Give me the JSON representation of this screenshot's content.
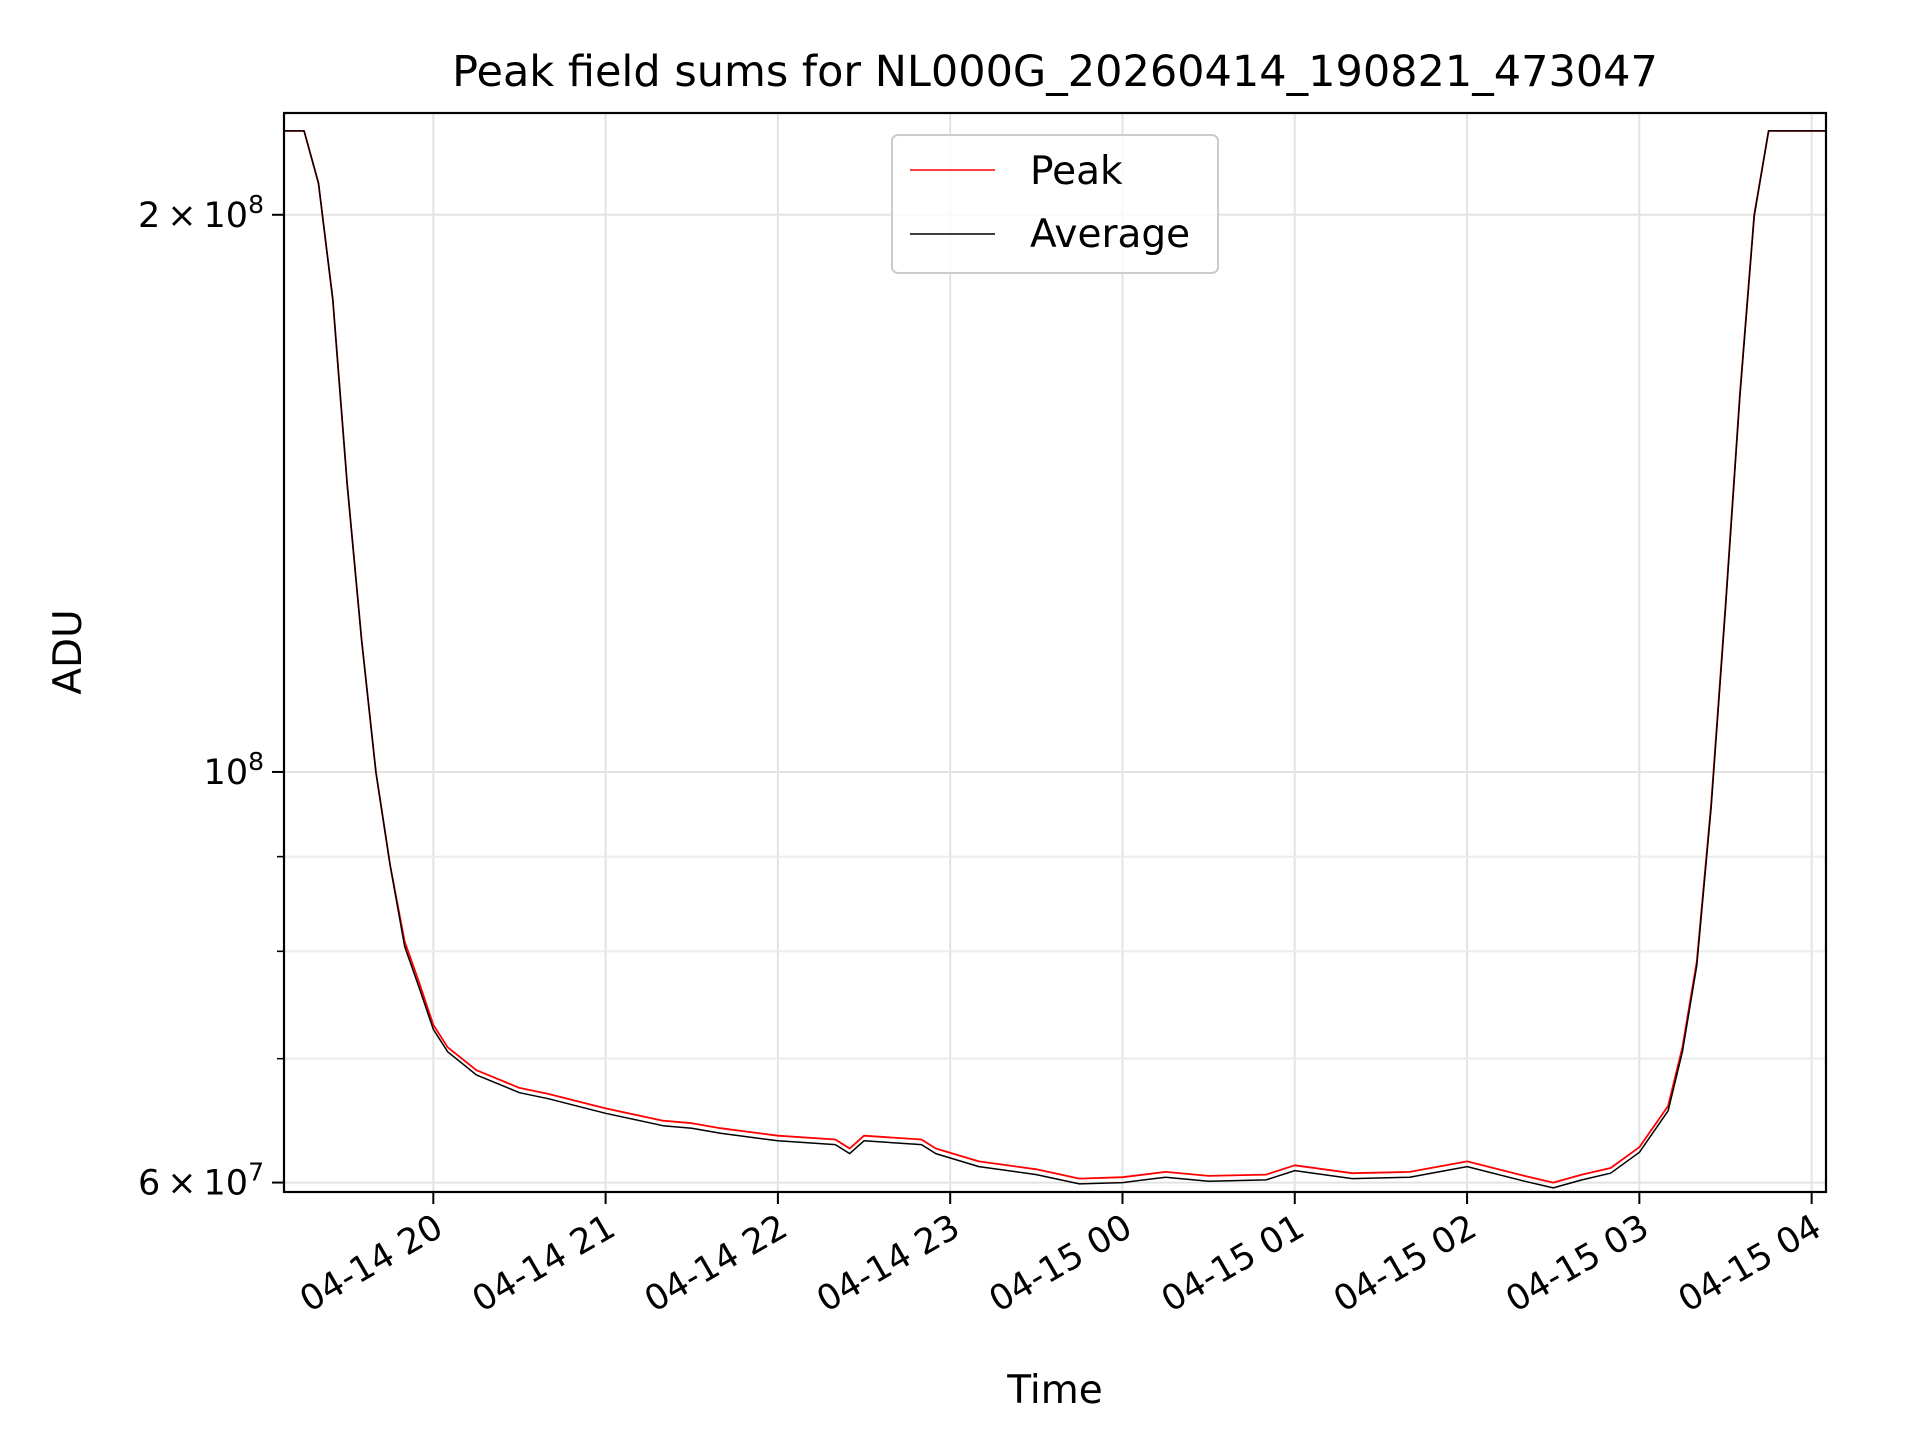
{
  "chart_data": {
    "type": "line",
    "title": "Peak field sums for NL000G_20260414_190821_473047",
    "xlabel": "Time",
    "ylabel": "ADU",
    "yscale": "log",
    "grid": true,
    "legend_position": "upper center",
    "x_tick_labels": [
      "04-14 20",
      "04-14 21",
      "04-14 22",
      "04-14 23",
      "04-15 00",
      "04-15 01",
      "04-15 02",
      "04-15 03",
      "04-15 04"
    ],
    "x_ticks": [
      "2026-04-14 20:00",
      "2026-04-14 21:00",
      "2026-04-14 22:00",
      "2026-04-14 23:00",
      "2026-04-15 00:00",
      "2026-04-15 01:00",
      "2026-04-15 02:00",
      "2026-04-15 03:00",
      "2026-04-15 04:00"
    ],
    "xlim": [
      "2026-04-14 19:08",
      "2026-04-15 04:05"
    ],
    "y_ticks": [
      {
        "value": 200000000,
        "mantissa": "2",
        "exponent": "8"
      },
      {
        "value": 100000000,
        "mantissa": "",
        "exponent": "8"
      },
      {
        "value": 60000000,
        "mantissa": "6",
        "exponent": "7"
      }
    ],
    "y_minor_ticks": [
      70000000,
      80000000,
      90000000
    ],
    "ylim": [
      59300000,
      227000000
    ],
    "series": [
      {
        "name": "Peak",
        "color": "#ff0000",
        "x": [
          "2026-04-14 19:08",
          "2026-04-14 19:15",
          "2026-04-14 19:20",
          "2026-04-14 19:25",
          "2026-04-14 19:30",
          "2026-04-14 19:35",
          "2026-04-14 19:40",
          "2026-04-14 19:45",
          "2026-04-14 19:50",
          "2026-04-14 19:55",
          "2026-04-14 20:00",
          "2026-04-14 20:05",
          "2026-04-14 20:10",
          "2026-04-14 20:15",
          "2026-04-14 20:20",
          "2026-04-14 20:30",
          "2026-04-14 20:40",
          "2026-04-14 21:00",
          "2026-04-14 21:20",
          "2026-04-14 21:30",
          "2026-04-14 21:40",
          "2026-04-14 22:00",
          "2026-04-14 22:20",
          "2026-04-14 22:25",
          "2026-04-14 22:30",
          "2026-04-14 22:50",
          "2026-04-14 22:55",
          "2026-04-14 23:10",
          "2026-04-14 23:30",
          "2026-04-14 23:45",
          "2026-04-15 00:00",
          "2026-04-15 00:15",
          "2026-04-15 00:30",
          "2026-04-15 00:50",
          "2026-04-15 01:00",
          "2026-04-15 01:20",
          "2026-04-15 01:40",
          "2026-04-15 02:00",
          "2026-04-15 02:20",
          "2026-04-15 02:30",
          "2026-04-15 02:40",
          "2026-04-15 02:50",
          "2026-04-15 03:00",
          "2026-04-15 03:10",
          "2026-04-15 03:15",
          "2026-04-15 03:20",
          "2026-04-15 03:25",
          "2026-04-15 03:30",
          "2026-04-15 03:35",
          "2026-04-15 03:40",
          "2026-04-15 03:45",
          "2026-04-15 03:50",
          "2026-04-15 03:55",
          "2026-04-15 04:05"
        ],
        "y": [
          222000000,
          222000000,
          208000000,
          180000000,
          143000000,
          118000000,
          100000000,
          89000000,
          81000000,
          77000000,
          73000000,
          71000000,
          70000000,
          69000000,
          68500000,
          67500000,
          67000000,
          65800000,
          64800000,
          64600000,
          64200000,
          63600000,
          63300000,
          62600000,
          63600000,
          63300000,
          62600000,
          61600000,
          61000000,
          60300000,
          60400000,
          60800000,
          60500000,
          60600000,
          61300000,
          60700000,
          60800000,
          61600000,
          60500000,
          60000000,
          60600000,
          61100000,
          62700000,
          66000000,
          71000000,
          79000000,
          96000000,
          123000000,
          160000000,
          200000000,
          222000000,
          222000000,
          222000000,
          222000000
        ]
      },
      {
        "name": "Average",
        "color": "#000000",
        "x": [
          "2026-04-14 19:08",
          "2026-04-14 19:15",
          "2026-04-14 19:20",
          "2026-04-14 19:25",
          "2026-04-14 19:30",
          "2026-04-14 19:35",
          "2026-04-14 19:40",
          "2026-04-14 19:45",
          "2026-04-14 19:50",
          "2026-04-14 19:55",
          "2026-04-14 20:00",
          "2026-04-14 20:05",
          "2026-04-14 20:10",
          "2026-04-14 20:15",
          "2026-04-14 20:20",
          "2026-04-14 20:30",
          "2026-04-14 20:40",
          "2026-04-14 21:00",
          "2026-04-14 21:20",
          "2026-04-14 21:30",
          "2026-04-14 21:40",
          "2026-04-14 22:00",
          "2026-04-14 22:20",
          "2026-04-14 22:25",
          "2026-04-14 22:30",
          "2026-04-14 22:50",
          "2026-04-14 22:55",
          "2026-04-14 23:10",
          "2026-04-14 23:30",
          "2026-04-14 23:45",
          "2026-04-15 00:00",
          "2026-04-15 00:15",
          "2026-04-15 00:30",
          "2026-04-15 00:50",
          "2026-04-15 01:00",
          "2026-04-15 01:20",
          "2026-04-15 01:40",
          "2026-04-15 02:00",
          "2026-04-15 02:20",
          "2026-04-15 02:30",
          "2026-04-15 02:40",
          "2026-04-15 02:50",
          "2026-04-15 03:00",
          "2026-04-15 03:10",
          "2026-04-15 03:15",
          "2026-04-15 03:20",
          "2026-04-15 03:25",
          "2026-04-15 03:30",
          "2026-04-15 03:35",
          "2026-04-15 03:40",
          "2026-04-15 03:45",
          "2026-04-15 03:50",
          "2026-04-15 03:55",
          "2026-04-15 04:05"
        ],
        "y": [
          222000000,
          222000000,
          208000000,
          180000000,
          143000000,
          118000000,
          100000000,
          89000000,
          80500000,
          76500000,
          72600000,
          70600000,
          69600000,
          68600000,
          68100000,
          67100000,
          66600000,
          65400000,
          64400000,
          64200000,
          63800000,
          63200000,
          62900000,
          62200000,
          63200000,
          62900000,
          62200000,
          61200000,
          60600000,
          59900000,
          60000000,
          60400000,
          60100000,
          60200000,
          60900000,
          60300000,
          60400000,
          61200000,
          60100000,
          59600000,
          60200000,
          60700000,
          62300000,
          65600000,
          70600000,
          78600000,
          95600000,
          122600000,
          159600000,
          199600000,
          222000000,
          222000000,
          222000000,
          222000000
        ]
      }
    ]
  }
}
